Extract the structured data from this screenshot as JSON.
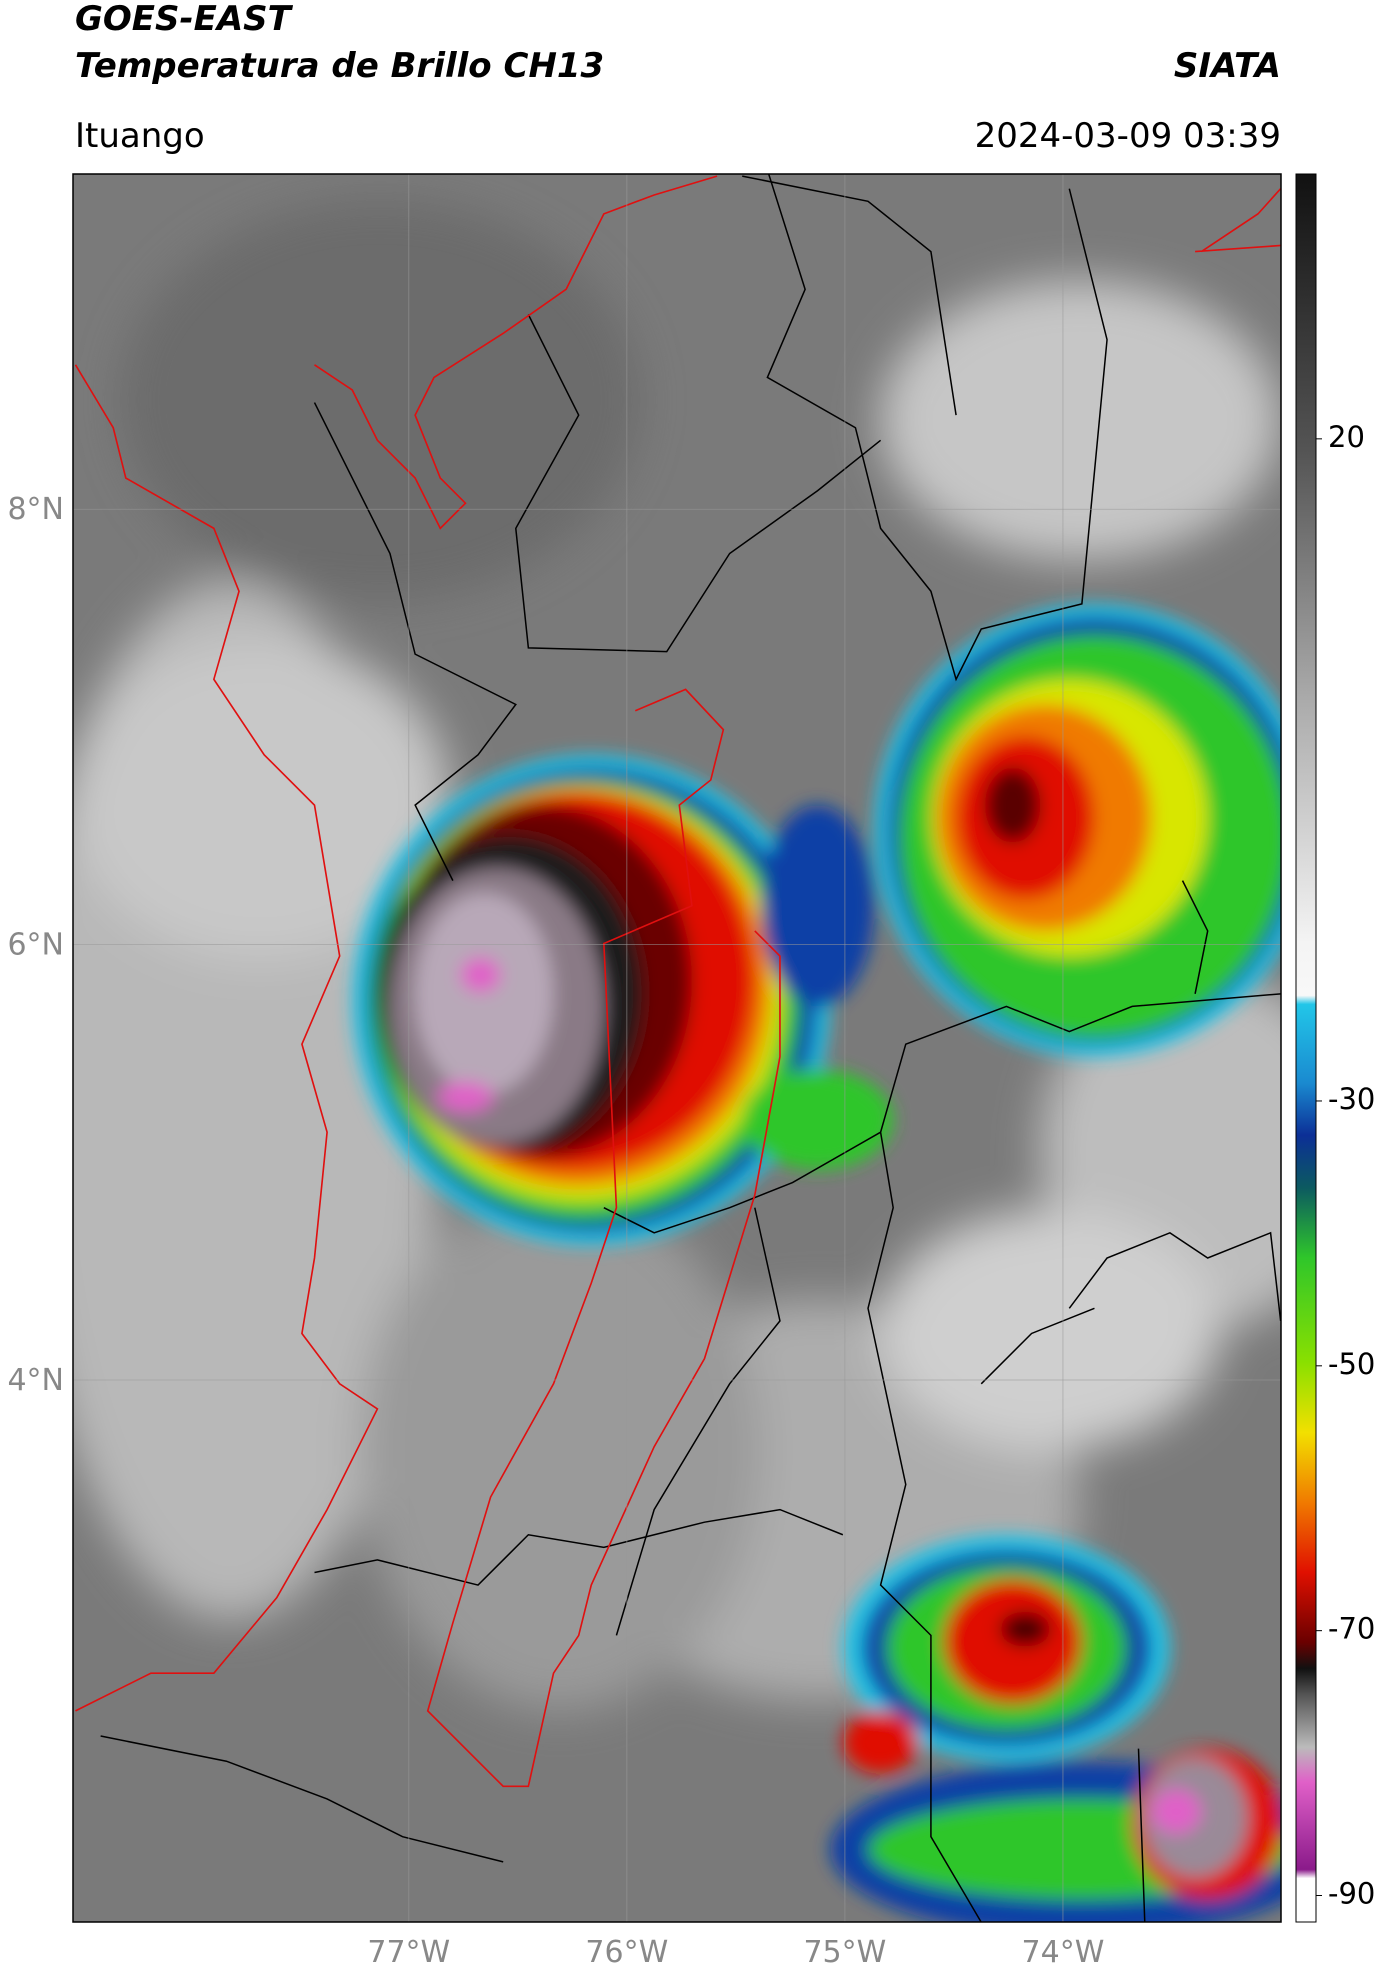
{
  "header": {
    "title": "GOES-EAST",
    "subtitle": "Temperatura de Brillo CH13",
    "source": "SIATA",
    "location": "Ituango",
    "timestamp": "2024-03-09 03:39"
  },
  "map": {
    "xlim": [
      -78.54,
      -73.0
    ],
    "ylim": [
      1.51,
      9.54
    ],
    "xticks": [
      {
        "value": -77,
        "label": "77°W"
      },
      {
        "value": -76,
        "label": "76°W"
      },
      {
        "value": -75,
        "label": "75°W"
      },
      {
        "value": -74,
        "label": "74°W"
      }
    ],
    "yticks": [
      {
        "value": 8,
        "label": "8°N"
      },
      {
        "value": 6,
        "label": "6°N"
      },
      {
        "value": 4,
        "label": "4°N"
      }
    ],
    "grid": true
  },
  "colorbar": {
    "lim": [
      -92,
      40
    ],
    "ticks": [
      20,
      -30,
      -50,
      -70,
      -90
    ]
  }
}
